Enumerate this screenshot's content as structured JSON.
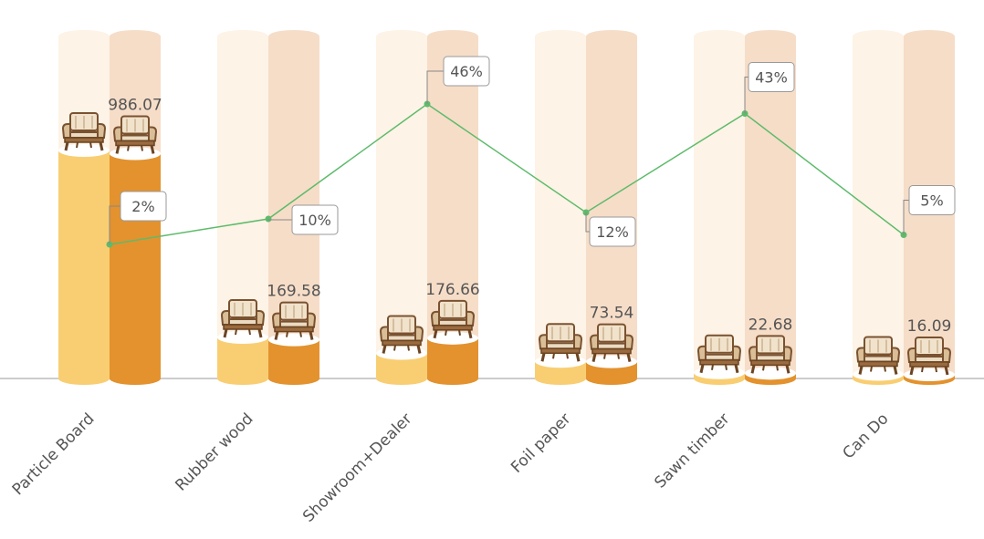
{
  "chart_data": {
    "type": "bar",
    "categories": [
      "Particle Board",
      "Rubber wood",
      "Showroom+Dealer",
      "Foil paper",
      "Sawn timber",
      "Can Do"
    ],
    "series": [
      {
        "values": [
          1000,
          180,
          110,
          75,
          25,
          18
        ],
        "color": "#F9CE72",
        "type": "bar"
      },
      {
        "values": [
          986.07,
          169.58,
          176.66,
          73.54,
          22.68,
          16.09
        ],
        "color": "#E3922E",
        "type": "bar"
      },
      {
        "values": [
          2,
          10,
          46,
          12,
          43,
          5
        ],
        "color": "#5DBB6B",
        "type": "line"
      }
    ],
    "value_labels": [
      "986.07",
      "169.58",
      "176.66",
      "73.54",
      "22.68",
      "16.09"
    ],
    "percent_labels": [
      "2%",
      "10%",
      "46%",
      "12%",
      "43%",
      "5%"
    ],
    "title": "",
    "xlabel": "",
    "ylabel": "",
    "ylim": [
      0,
      1000
    ],
    "line_ylim": [
      0,
      50
    ],
    "grid": false,
    "legend": "none",
    "marker_icon": "armchair-icon",
    "colors": {
      "light_bar_bg": "#FDF3E6",
      "dark_bar_bg": "#F6DDC8",
      "light_bar": "#F9CE72",
      "dark_bar": "#E3922E",
      "line": "#5DBB6B",
      "baseline": "#999999",
      "text": "#555555"
    }
  }
}
